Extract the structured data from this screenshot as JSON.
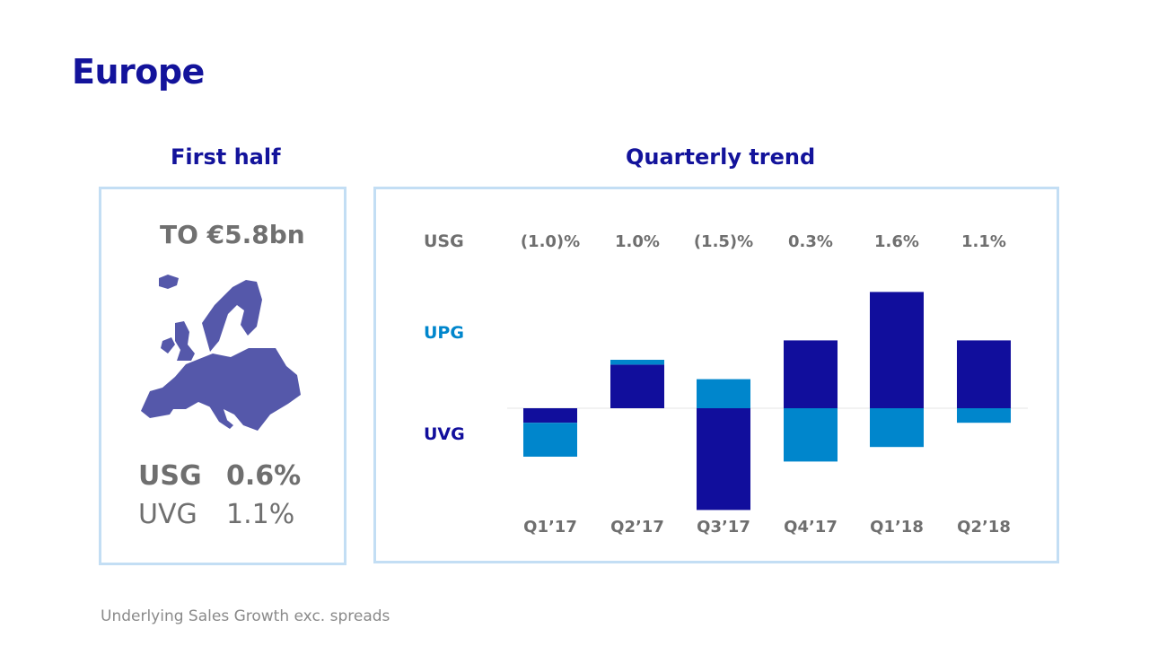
{
  "title": "Europe",
  "left": {
    "heading": "First half",
    "turnover": "TO €5.8bn",
    "usg_label": "USG",
    "usg_value": "0.6%",
    "uvg_label": "UVG",
    "uvg_value": "1.1%"
  },
  "right": {
    "heading": "Quarterly trend"
  },
  "footnote": "Underlying Sales Growth exc. spreads",
  "colors": {
    "title": "#13139b",
    "uvg": "#110e9c",
    "upg": "#0086cc",
    "border": "#c3def4",
    "map": "#5558aa"
  },
  "chart_data": {
    "type": "bar",
    "stacked": true,
    "categories": [
      "Q1’17",
      "Q2’17",
      "Q3’17",
      "Q4’17",
      "Q1’18",
      "Q2’18"
    ],
    "row_labels": {
      "usg": "USG",
      "upg": "UPG",
      "uvg": "UVG"
    },
    "usg_labels": [
      "(1.0)%",
      "1.0%",
      "(1.5)%",
      "0.3%",
      "1.6%",
      "1.1%"
    ],
    "series": [
      {
        "name": "UVG",
        "values": [
          -0.3,
          0.9,
          -2.1,
          1.4,
          2.4,
          1.4
        ]
      },
      {
        "name": "UPG",
        "values": [
          -0.7,
          0.1,
          0.6,
          -1.1,
          -0.8,
          -0.3
        ]
      }
    ],
    "grid": false
  }
}
